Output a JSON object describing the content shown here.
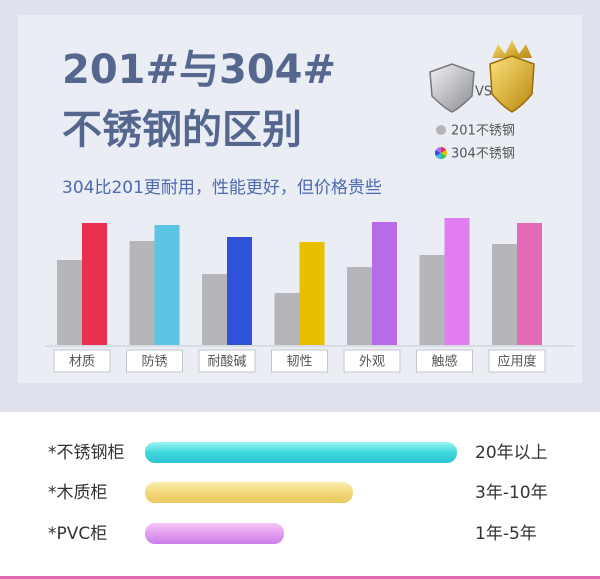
{
  "chart_data": {
    "type": "bar",
    "title": [
      "201#与304#",
      "不锈钢的区别"
    ],
    "subtitle": "304比201更耐用，性能更好，但价格贵些",
    "vs_label": "VS",
    "categories": [
      "材质",
      "防锈",
      "耐酸碱",
      "韧性",
      "外观",
      "触感",
      "应用度"
    ],
    "series": [
      {
        "name": "201不锈钢",
        "color": "#b5b5ba",
        "values": [
          85,
          104,
          71,
          52,
          78,
          90,
          101
        ]
      },
      {
        "name": "304不锈钢",
        "colors": [
          "#e8304f",
          "#5cc4e4",
          "#2f52d8",
          "#e9c000",
          "#b86be8",
          "#e07ef0",
          "#e46bb8"
        ],
        "values": [
          122,
          120,
          108,
          103,
          123,
          127,
          122
        ]
      }
    ]
  },
  "comparison": {
    "rows": [
      {
        "name": "*不锈钢柜",
        "label": "20年以上"
      },
      {
        "name": "*木质柜",
        "label": "3年-10年"
      },
      {
        "name": "*PVC柜",
        "label": "1年-5年"
      }
    ]
  }
}
